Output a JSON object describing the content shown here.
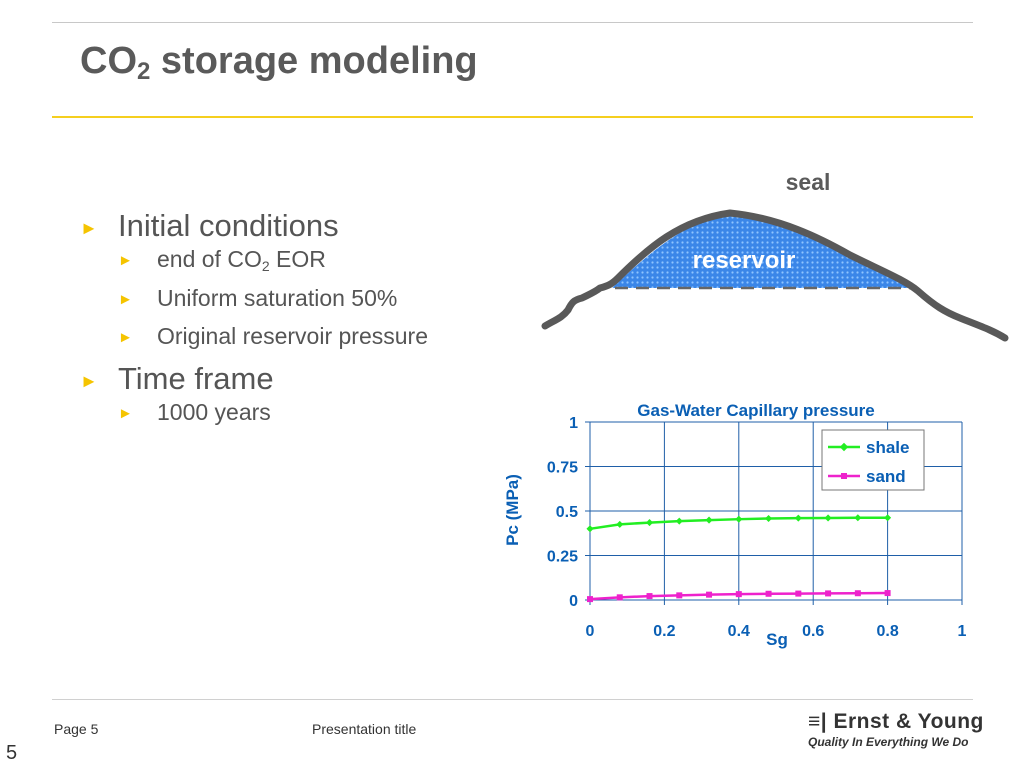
{
  "slide": {
    "title_main": "CO",
    "title_sub": "2",
    "title_rest": " storage modeling"
  },
  "bullets": [
    {
      "text": "Initial conditions",
      "children": [
        {
          "pre": "end of CO",
          "sub": "2",
          "post": " EOR"
        },
        {
          "pre": "Uniform saturation 50%"
        },
        {
          "pre": "Original reservoir pressure"
        }
      ]
    },
    {
      "text": "Time frame",
      "children": [
        {
          "pre": "1000 years"
        }
      ]
    }
  ],
  "diagram": {
    "seal_label": "seal",
    "reservoir_label": "reservoir",
    "colors": {
      "rock": "#595959",
      "fill": "#3a86e8",
      "dash": "#666666"
    }
  },
  "chart_data": {
    "type": "line",
    "title": "Gas-Water Capillary pressure",
    "xlabel": "Sg",
    "ylabel": "Pc (MPa)",
    "xlim": [
      0,
      1
    ],
    "ylim": [
      0,
      1
    ],
    "xticks": [
      0,
      0.2,
      0.4,
      0.6,
      0.8,
      1
    ],
    "yticks": [
      0,
      0.25,
      0.5,
      0.75,
      1
    ],
    "xtick_labels": [
      "0",
      "0.2",
      "0.4",
      "0.6",
      "0.8",
      "1"
    ],
    "ytick_labels": [
      "0",
      "0.25",
      "0.5",
      "0.75",
      "1"
    ],
    "grid": true,
    "legend_position": "top-right",
    "series": [
      {
        "name": "shale",
        "color": "#22ee22",
        "marker": "diamond",
        "x": [
          0,
          0.08,
          0.16,
          0.24,
          0.32,
          0.4,
          0.48,
          0.56,
          0.64,
          0.72,
          0.8
        ],
        "y": [
          0.4,
          0.425,
          0.435,
          0.443,
          0.449,
          0.454,
          0.458,
          0.46,
          0.461,
          0.462,
          0.462
        ]
      },
      {
        "name": "sand",
        "color": "#ee22cc",
        "marker": "square",
        "x": [
          0,
          0.08,
          0.16,
          0.24,
          0.32,
          0.4,
          0.48,
          0.56,
          0.64,
          0.72,
          0.8
        ],
        "y": [
          0.005,
          0.015,
          0.022,
          0.026,
          0.03,
          0.033,
          0.035,
          0.036,
          0.037,
          0.038,
          0.039
        ]
      }
    ],
    "text_color": "#0a5fb4"
  },
  "footer": {
    "page_label": "Page 5",
    "presentation_title": "Presentation title",
    "logo_name": "Ernst & Young",
    "logo_tagline": "Quality In Everything We Do",
    "slide_number": "5"
  }
}
